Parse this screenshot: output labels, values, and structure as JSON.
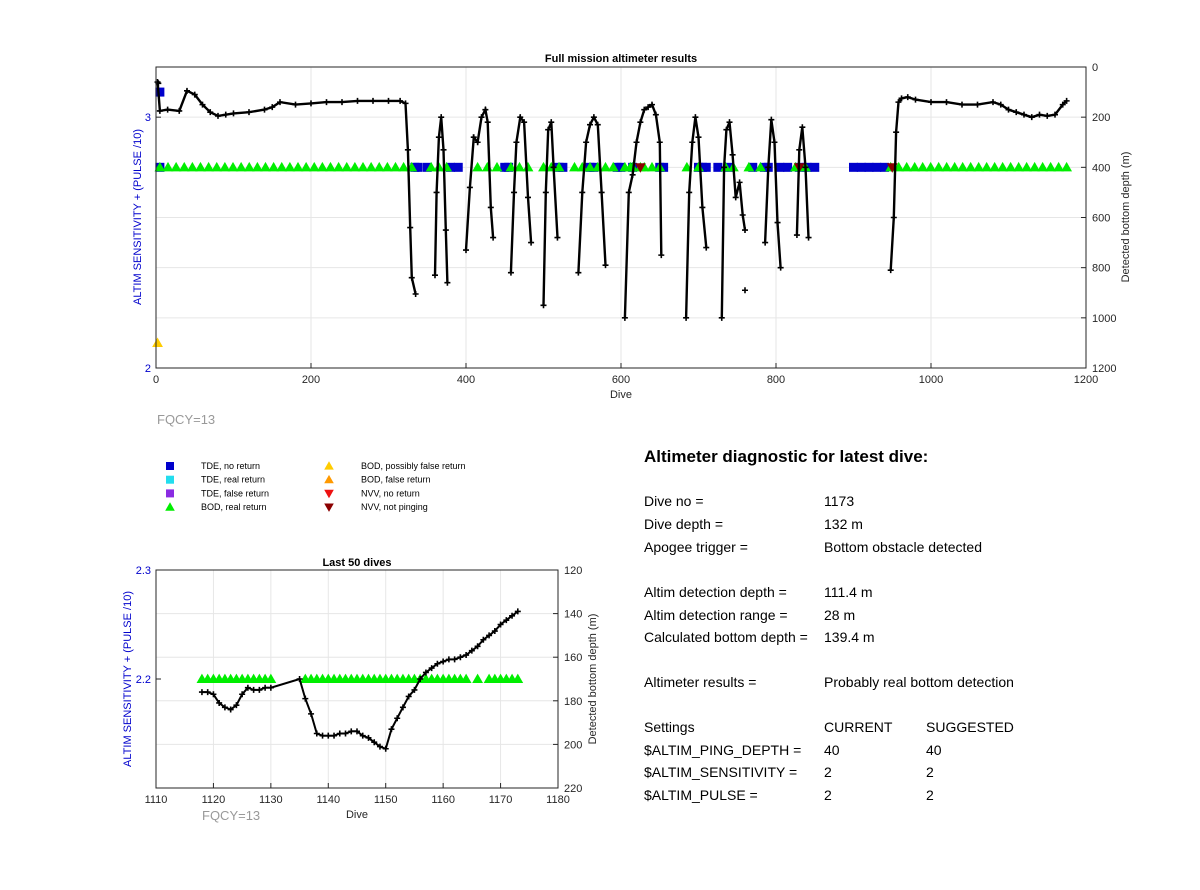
{
  "chart_data": [
    {
      "type": "scatter",
      "title": "Full mission altimeter results",
      "xlabel": "Dive",
      "ylabel_left": "ALTIM SENSITIVITY + (PULSE /10)",
      "ylabel_right": "Detected bottom depth (m)",
      "xlim": [
        0,
        1200
      ],
      "xticks": [
        0,
        200,
        400,
        600,
        800,
        1000,
        1200
      ],
      "ylim_left": [
        2,
        3.2
      ],
      "yticks_left": [
        2,
        3
      ],
      "ylim_right": [
        0,
        1200
      ],
      "yticks_right": [
        0,
        200,
        400,
        600,
        800,
        1000,
        1200
      ],
      "right_axis_reversed": true,
      "grid": true,
      "annotation": "FQCY=13",
      "series": [
        {
          "name": "TDE, no return",
          "color": "#0000cc",
          "marker": "square",
          "axis": "left",
          "y": 2.8,
          "x": [
            5,
            334,
            338,
            350,
            380,
            390,
            450,
            455,
            520,
            525,
            560,
            565,
            595,
            600,
            615,
            650,
            655,
            700,
            705,
            710,
            725,
            740,
            770,
            785,
            790,
            805,
            815,
            830,
            840,
            850,
            900,
            910,
            920,
            930,
            940
          ]
        },
        {
          "name": "TDE, no return",
          "color": "#0000cc",
          "marker": "square",
          "axis": "left",
          "y": 3.1,
          "x": [
            5
          ]
        },
        {
          "name": "BOD, real return",
          "color": "#00ee00",
          "marker": "triangle-up",
          "axis": "left",
          "y": 2.8,
          "ranges": [
            [
              5,
              330
            ],
            [
              355,
              375
            ],
            [
              415,
              440
            ],
            [
              458,
              480
            ],
            [
              500,
              520
            ],
            [
              540,
              590
            ],
            [
              605,
              612
            ],
            [
              615,
              625
            ],
            [
              630,
              650
            ],
            [
              685,
              700
            ],
            [
              735,
              745
            ],
            [
              765,
              780
            ],
            [
              825,
              838
            ],
            [
              948,
              1175
            ]
          ]
        },
        {
          "name": "BOD, possibly false return",
          "color": "#ffcc00",
          "marker": "triangle-up",
          "axis": "left",
          "y": 2.1,
          "x": [
            2
          ]
        },
        {
          "name": "NVV, not pinging",
          "color": "#8b0000",
          "marker": "triangle-down",
          "axis": "left",
          "y": 2.8,
          "x": [
            625,
            830,
            950
          ]
        },
        {
          "name": "Detected bottom depth",
          "color": "#000000",
          "marker": "plus",
          "axis": "right",
          "segments": [
            [
              [
                2,
                60
              ],
              [
                5,
                175
              ],
              [
                15,
                170
              ],
              [
                30,
                175
              ],
              [
                40,
                95
              ],
              [
                50,
                110
              ],
              [
                60,
                150
              ],
              [
                70,
                180
              ],
              [
                80,
                195
              ],
              [
                90,
                190
              ],
              [
                100,
                185
              ],
              [
                120,
                180
              ],
              [
                140,
                170
              ],
              [
                150,
                160
              ],
              [
                160,
                140
              ],
              [
                180,
                150
              ],
              [
                200,
                145
              ],
              [
                220,
                140
              ],
              [
                240,
                140
              ],
              [
                260,
                135
              ],
              [
                280,
                135
              ],
              [
                300,
                135
              ],
              [
                315,
                135
              ],
              [
                322,
                145
              ],
              [
                325,
                330
              ],
              [
                328,
                640
              ],
              [
                330,
                840
              ],
              [
                335,
                905
              ]
            ],
            [
              [
                360,
                830
              ],
              [
                362,
                500
              ],
              [
                365,
                280
              ],
              [
                368,
                200
              ],
              [
                371,
                330
              ],
              [
                374,
                650
              ],
              [
                376,
                860
              ]
            ],
            [
              [
                400,
                730
              ],
              [
                405,
                480
              ],
              [
                410,
                280
              ],
              [
                415,
                300
              ],
              [
                420,
                200
              ],
              [
                425,
                170
              ],
              [
                428,
                220
              ],
              [
                432,
                560
              ],
              [
                435,
                680
              ]
            ],
            [
              [
                458,
                820
              ],
              [
                462,
                500
              ],
              [
                465,
                300
              ],
              [
                470,
                200
              ],
              [
                475,
                220
              ],
              [
                480,
                520
              ],
              [
                484,
                700
              ]
            ],
            [
              [
                500,
                950
              ],
              [
                503,
                500
              ],
              [
                506,
                250
              ],
              [
                510,
                220
              ],
              [
                513,
                400
              ],
              [
                518,
                680
              ]
            ],
            [
              [
                545,
                820
              ],
              [
                550,
                500
              ],
              [
                555,
                300
              ],
              [
                560,
                230
              ],
              [
                565,
                200
              ],
              [
                570,
                230
              ],
              [
                575,
                500
              ],
              [
                580,
                790
              ]
            ],
            [
              [
                605,
                1000
              ],
              [
                610,
                500
              ],
              [
                615,
                430
              ],
              [
                620,
                300
              ],
              [
                625,
                220
              ],
              [
                630,
                170
              ],
              [
                635,
                160
              ],
              [
                640,
                150
              ],
              [
                645,
                190
              ],
              [
                650,
                300
              ],
              [
                652,
                750
              ]
            ],
            [
              [
                684,
                1000
              ],
              [
                688,
                500
              ],
              [
                692,
                300
              ],
              [
                696,
                200
              ],
              [
                700,
                280
              ],
              [
                705,
                560
              ],
              [
                710,
                720
              ]
            ],
            [
              [
                730,
                1000
              ],
              [
                733,
                400
              ],
              [
                736,
                250
              ],
              [
                740,
                220
              ],
              [
                744,
                350
              ],
              [
                748,
                520
              ],
              [
                753,
                460
              ],
              [
                757,
                590
              ],
              [
                760,
                650
              ]
            ],
            [
              [
                786,
                700
              ],
              [
                790,
                400
              ],
              [
                794,
                210
              ],
              [
                798,
                300
              ],
              [
                802,
                620
              ],
              [
                806,
                800
              ]
            ],
            [
              [
                827,
                670
              ],
              [
                830,
                330
              ],
              [
                834,
                240
              ],
              [
                838,
                400
              ],
              [
                842,
                680
              ]
            ],
            [
              [
                948,
                810
              ],
              [
                952,
                600
              ],
              [
                955,
                260
              ],
              [
                958,
                140
              ],
              [
                962,
                125
              ],
              [
                970,
                120
              ],
              [
                980,
                130
              ],
              [
                1000,
                140
              ],
              [
                1020,
                140
              ],
              [
                1040,
                150
              ],
              [
                1060,
                150
              ],
              [
                1080,
                140
              ],
              [
                1090,
                150
              ],
              [
                1100,
                170
              ],
              [
                1110,
                180
              ],
              [
                1120,
                190
              ],
              [
                1130,
                200
              ],
              [
                1140,
                190
              ],
              [
                1150,
                195
              ],
              [
                1160,
                190
              ],
              [
                1170,
                150
              ],
              [
                1175,
                135
              ]
            ]
          ],
          "points": [
            [
              3,
              65
            ],
            [
              760,
              890
            ]
          ]
        }
      ]
    },
    {
      "type": "scatter",
      "title": "Last 50 dives",
      "xlabel": "Dive",
      "ylabel_left": "ALTIM SENSITIVITY + (PULSE /10)",
      "ylabel_right": "Detected bottom depth (m)",
      "xlim": [
        1110,
        1180
      ],
      "xticks": [
        1110,
        1120,
        1130,
        1140,
        1150,
        1160,
        1170,
        1180
      ],
      "ylim_left": [
        2.1,
        2.3
      ],
      "yticks_left": [
        2.2,
        2.3
      ],
      "ylim_right": [
        120,
        220
      ],
      "yticks_right": [
        120,
        140,
        160,
        180,
        200,
        220
      ],
      "right_axis_reversed": true,
      "grid": true,
      "annotation": "FQCY=13",
      "series": [
        {
          "name": "BOD, real return",
          "color": "#00ee00",
          "marker": "triangle-up",
          "axis": "left",
          "y": 2.2,
          "x": [
            1118,
            1119,
            1120,
            1121,
            1122,
            1123,
            1124,
            1125,
            1126,
            1127,
            1128,
            1129,
            1130,
            1136,
            1137,
            1138,
            1139,
            1140,
            1141,
            1142,
            1143,
            1144,
            1145,
            1146,
            1147,
            1148,
            1149,
            1150,
            1151,
            1152,
            1153,
            1154,
            1155,
            1156,
            1157,
            1158,
            1159,
            1160,
            1161,
            1162,
            1163,
            1164,
            1166,
            1168,
            1169,
            1170,
            1171,
            1172,
            1173
          ]
        },
        {
          "name": "Detected bottom depth",
          "color": "#000000",
          "marker": "plus",
          "axis": "right",
          "x": [
            1118,
            1119,
            1120,
            1121,
            1122,
            1123,
            1124,
            1125,
            1126,
            1127,
            1128,
            1129,
            1130,
            1135,
            1136,
            1137,
            1138,
            1139,
            1140,
            1141,
            1142,
            1143,
            1144,
            1145,
            1146,
            1147,
            1148,
            1149,
            1150,
            1151,
            1152,
            1153,
            1154,
            1155,
            1156,
            1157,
            1158,
            1159,
            1160,
            1161,
            1162,
            1163,
            1164,
            1165,
            1166,
            1167,
            1168,
            1169,
            1170,
            1171,
            1172,
            1173
          ],
          "y": [
            176,
            176,
            177,
            181,
            183,
            184,
            182,
            177,
            174,
            175,
            175,
            174,
            174,
            170,
            179,
            186,
            195,
            196,
            196,
            196,
            195,
            195,
            194,
            194,
            196,
            197,
            199,
            201,
            202,
            193,
            188,
            183,
            178,
            175,
            170,
            167,
            165,
            163,
            162,
            161,
            161,
            160,
            159,
            157,
            155,
            152,
            150,
            148,
            145,
            143,
            141,
            139
          ]
        }
      ]
    }
  ],
  "legend": [
    {
      "label": "TDE, no return",
      "color": "#0000cc",
      "marker": "square"
    },
    {
      "label": "TDE, real return",
      "color": "#22ddee",
      "marker": "square"
    },
    {
      "label": "TDE, false return",
      "color": "#8a2be2",
      "marker": "square"
    },
    {
      "label": "BOD, real return",
      "color": "#00ee00",
      "marker": "triangle-up"
    },
    {
      "label": "BOD, possibly false return",
      "color": "#ffcc00",
      "marker": "triangle-up"
    },
    {
      "label": "BOD, false return",
      "color": "#ff9900",
      "marker": "triangle-up"
    },
    {
      "label": "NVV, no return",
      "color": "#ee1111",
      "marker": "triangle-down"
    },
    {
      "label": "NVV, not pinging",
      "color": "#8b0000",
      "marker": "triangle-down"
    }
  ],
  "diagnostic": {
    "heading": "Altimeter diagnostic for latest dive:",
    "rows": [
      {
        "label": "Dive no =",
        "value": "1173"
      },
      {
        "label": "Dive depth =",
        "value": "132 m"
      },
      {
        "label": "Apogee trigger =",
        "value": "Bottom obstacle detected"
      },
      {
        "label": "Altim detection depth =",
        "value": "111.4 m"
      },
      {
        "label": "Altim detection range =",
        "value": "28 m"
      },
      {
        "label": "Calculated bottom depth =",
        "value": "139.4 m"
      },
      {
        "label": "Altimeter results =",
        "value": "Probably real bottom detection"
      }
    ],
    "settings": {
      "header": {
        "label": "Settings",
        "current": "CURRENT",
        "suggested": "SUGGESTED"
      },
      "rows": [
        {
          "label": "$ALTIM_PING_DEPTH =",
          "current": "40",
          "suggested": "40"
        },
        {
          "label": "$ALTIM_SENSITIVITY =",
          "current": "2",
          "suggested": "2"
        },
        {
          "label": "$ALTIM_PULSE =",
          "current": "2",
          "suggested": "2"
        }
      ]
    }
  }
}
